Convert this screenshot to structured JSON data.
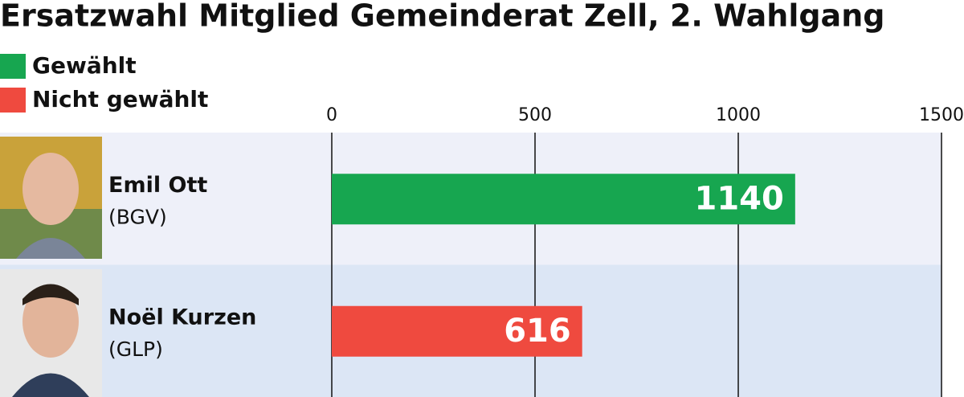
{
  "chart_data": {
    "type": "bar",
    "title": "Ersatzwahl Mitglied Gemeinderat Zell, 2. Wahlgang",
    "legend": [
      {
        "name": "Gewählt",
        "color": "#17a650"
      },
      {
        "name": "Nicht gewählt",
        "color": "#ef4a3f"
      }
    ],
    "categories": [
      "Emil Ott",
      "Noël Kurzen"
    ],
    "parties": [
      "(BGV)",
      "(GLP)"
    ],
    "values": [
      1140,
      616
    ],
    "colors": [
      "#17a650",
      "#ef4a3f"
    ],
    "xlim": [
      0,
      1500
    ],
    "xticks": [
      0,
      500,
      1000,
      1500
    ],
    "grid": true
  }
}
